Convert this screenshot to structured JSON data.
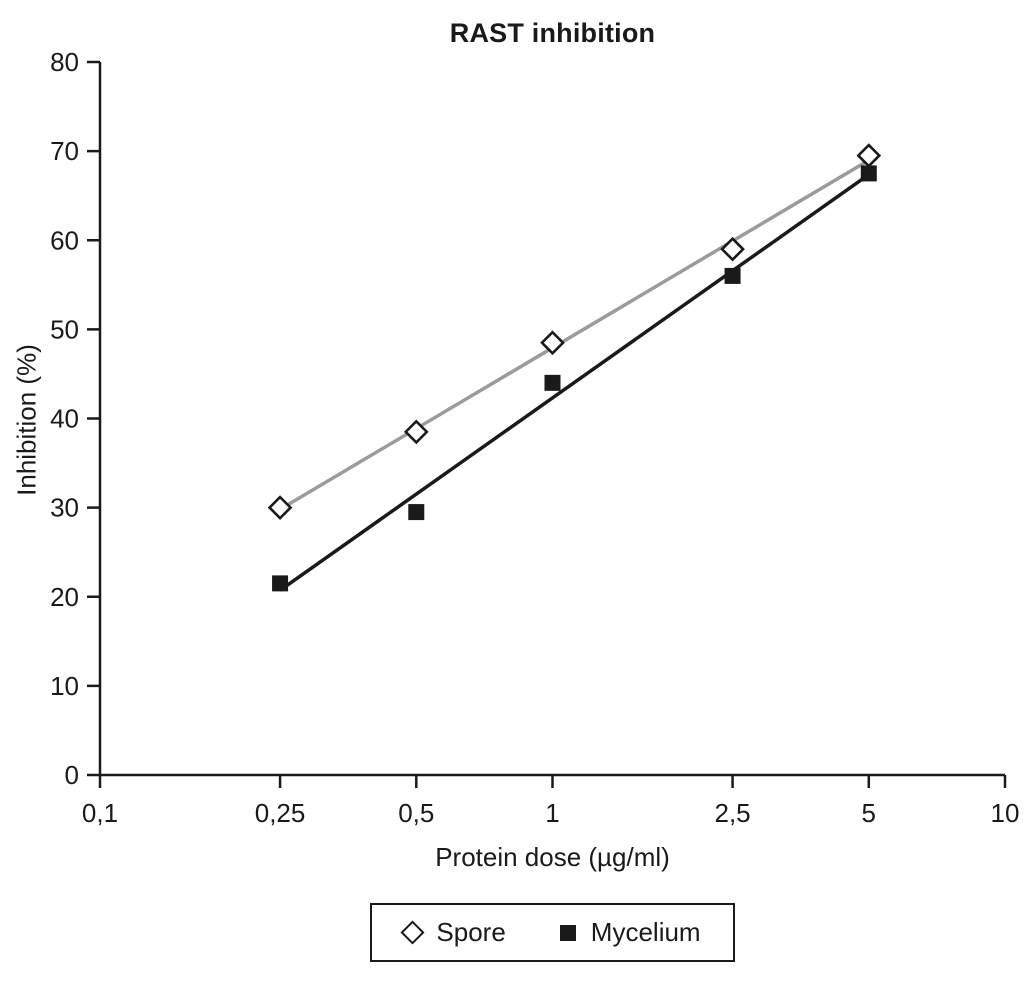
{
  "chart_data": {
    "type": "scatter",
    "title": "RAST inhibition",
    "xlabel": "Protein dose (µg/ml)",
    "ylabel": "Inhibition (%)",
    "x_scale": "log",
    "xlim": [
      0.1,
      10
    ],
    "ylim": [
      0,
      80
    ],
    "grid": false,
    "axis_color": "#1a1a1a",
    "background_color": "#ffffff",
    "x_ticks": [
      {
        "value": 0.1,
        "label": "0,1"
      },
      {
        "value": 0.25,
        "label": "0,25"
      },
      {
        "value": 0.5,
        "label": "0,5"
      },
      {
        "value": 1,
        "label": "1"
      },
      {
        "value": 2.5,
        "label": "2,5"
      },
      {
        "value": 5,
        "label": "5"
      },
      {
        "value": 10,
        "label": "10"
      }
    ],
    "y_ticks": [
      {
        "value": 0,
        "label": "0"
      },
      {
        "value": 10,
        "label": "10"
      },
      {
        "value": 20,
        "label": "20"
      },
      {
        "value": 30,
        "label": "30"
      },
      {
        "value": 40,
        "label": "40"
      },
      {
        "value": 50,
        "label": "50"
      },
      {
        "value": 60,
        "label": "60"
      },
      {
        "value": 70,
        "label": "70"
      },
      {
        "value": 80,
        "label": "80"
      }
    ],
    "series": [
      {
        "name": "Spore",
        "marker": "open-diamond",
        "marker_color": "#1a1a1a",
        "color": "#9b9b9b",
        "trendline": true,
        "x": [
          0.25,
          0.5,
          1,
          2.5,
          5
        ],
        "y": [
          30,
          38.5,
          48.5,
          59,
          69.5
        ]
      },
      {
        "name": "Mycelium",
        "marker": "filled-square",
        "marker_color": "#1a1a1a",
        "color": "#1a1a1a",
        "trendline": true,
        "x": [
          0.25,
          0.5,
          1,
          2.5,
          5
        ],
        "y": [
          21.5,
          29.5,
          44,
          56,
          67.5
        ]
      }
    ],
    "legend": {
      "position": "bottom-center",
      "border": true
    }
  }
}
